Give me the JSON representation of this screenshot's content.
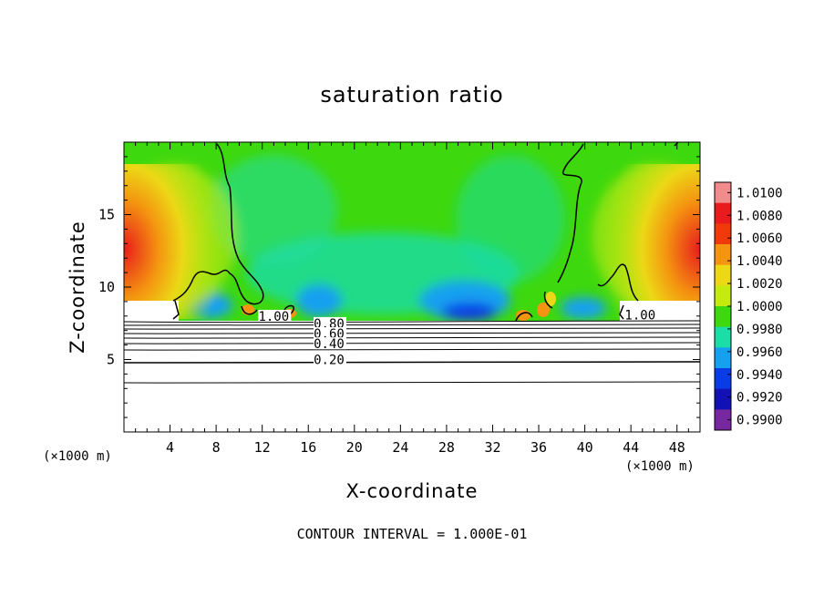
{
  "chart_data": {
    "type": "heatmap",
    "title": "saturation ratio",
    "xlabel": "X-coordinate",
    "ylabel": "Z-coordinate",
    "x_unit": "(×1000 m)",
    "xlim": [
      0,
      50
    ],
    "ylim": [
      0,
      20
    ],
    "x_ticks": [
      4,
      8,
      12,
      16,
      20,
      24,
      28,
      32,
      36,
      40,
      44,
      48
    ],
    "y_ticks": [
      5,
      10,
      15
    ],
    "colorbar": {
      "levels": [
        "1.0100",
        "1.0080",
        "1.0060",
        "1.0040",
        "1.0020",
        "1.0000",
        "0.9980",
        "0.9960",
        "0.9940",
        "0.9920",
        "0.9900"
      ],
      "colors": [
        "#f08c8c",
        "#e81c1c",
        "#f03a0a",
        "#f49410",
        "#ecd816",
        "#c4ea10",
        "#3ed80e",
        "#1cdca8",
        "#15a0f0",
        "#0a3ce6",
        "#1212b4",
        "#78289e"
      ]
    },
    "contour_labels": [
      {
        "text": "1.00",
        "x": 13.0,
        "z": 7.8
      },
      {
        "text": "1.00",
        "x": 44.8,
        "z": 7.9
      },
      {
        "text": "0.80",
        "x": 17.8,
        "z": 7.3
      },
      {
        "text": "0.60",
        "x": 17.8,
        "z": 6.6
      },
      {
        "text": "0.40",
        "x": 17.8,
        "z": 5.9
      },
      {
        "text": "0.20",
        "x": 17.8,
        "z": 4.8
      }
    ],
    "contour_interval": "CONTOUR INTERVAL = 1.000E-01"
  }
}
